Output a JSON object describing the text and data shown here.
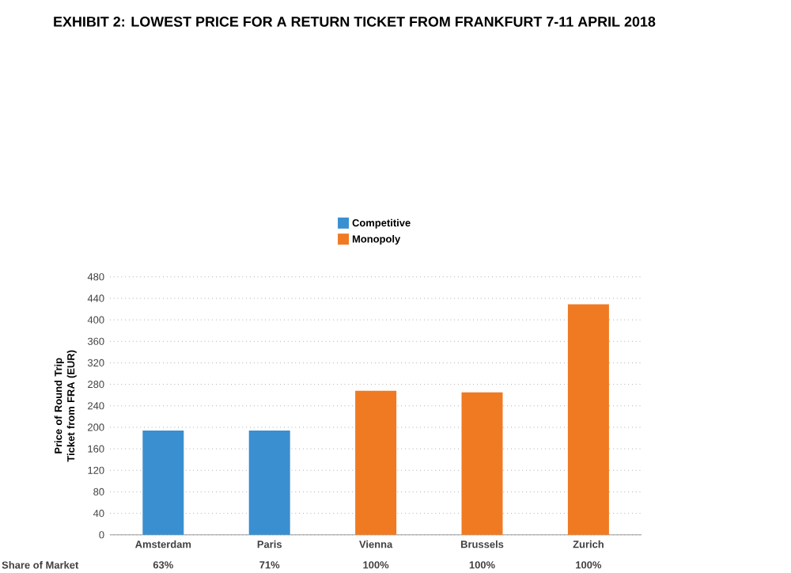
{
  "chart_data": {
    "type": "bar",
    "title": "EXHIBIT 2: LOWEST PRICE FOR A RETURN TICKET FROM FRANKFURT 7-11 APRIL 2018",
    "ylabel": "Price of Round Trip Ticket from FRA (EUR)",
    "categories": [
      "Amsterdam",
      "Paris",
      "Vienna",
      "Brussels",
      "Zurich"
    ],
    "series": [
      {
        "name": "Competitive",
        "color": "#3a8fd0",
        "values": [
          194,
          194,
          null,
          null,
          null
        ]
      },
      {
        "name": "Monopoly",
        "color": "#f07a22",
        "values": [
          null,
          null,
          268,
          265,
          429
        ]
      }
    ],
    "annotations": [
      "Share of Market",
      "63%",
      "71%",
      "100%",
      "100%",
      "100%"
    ],
    "ylim": [
      0,
      480
    ],
    "yticks": [
      0,
      40,
      80,
      120,
      160,
      200,
      240,
      280,
      320,
      360,
      400,
      440,
      480
    ],
    "grid": "y",
    "legend": "top"
  }
}
